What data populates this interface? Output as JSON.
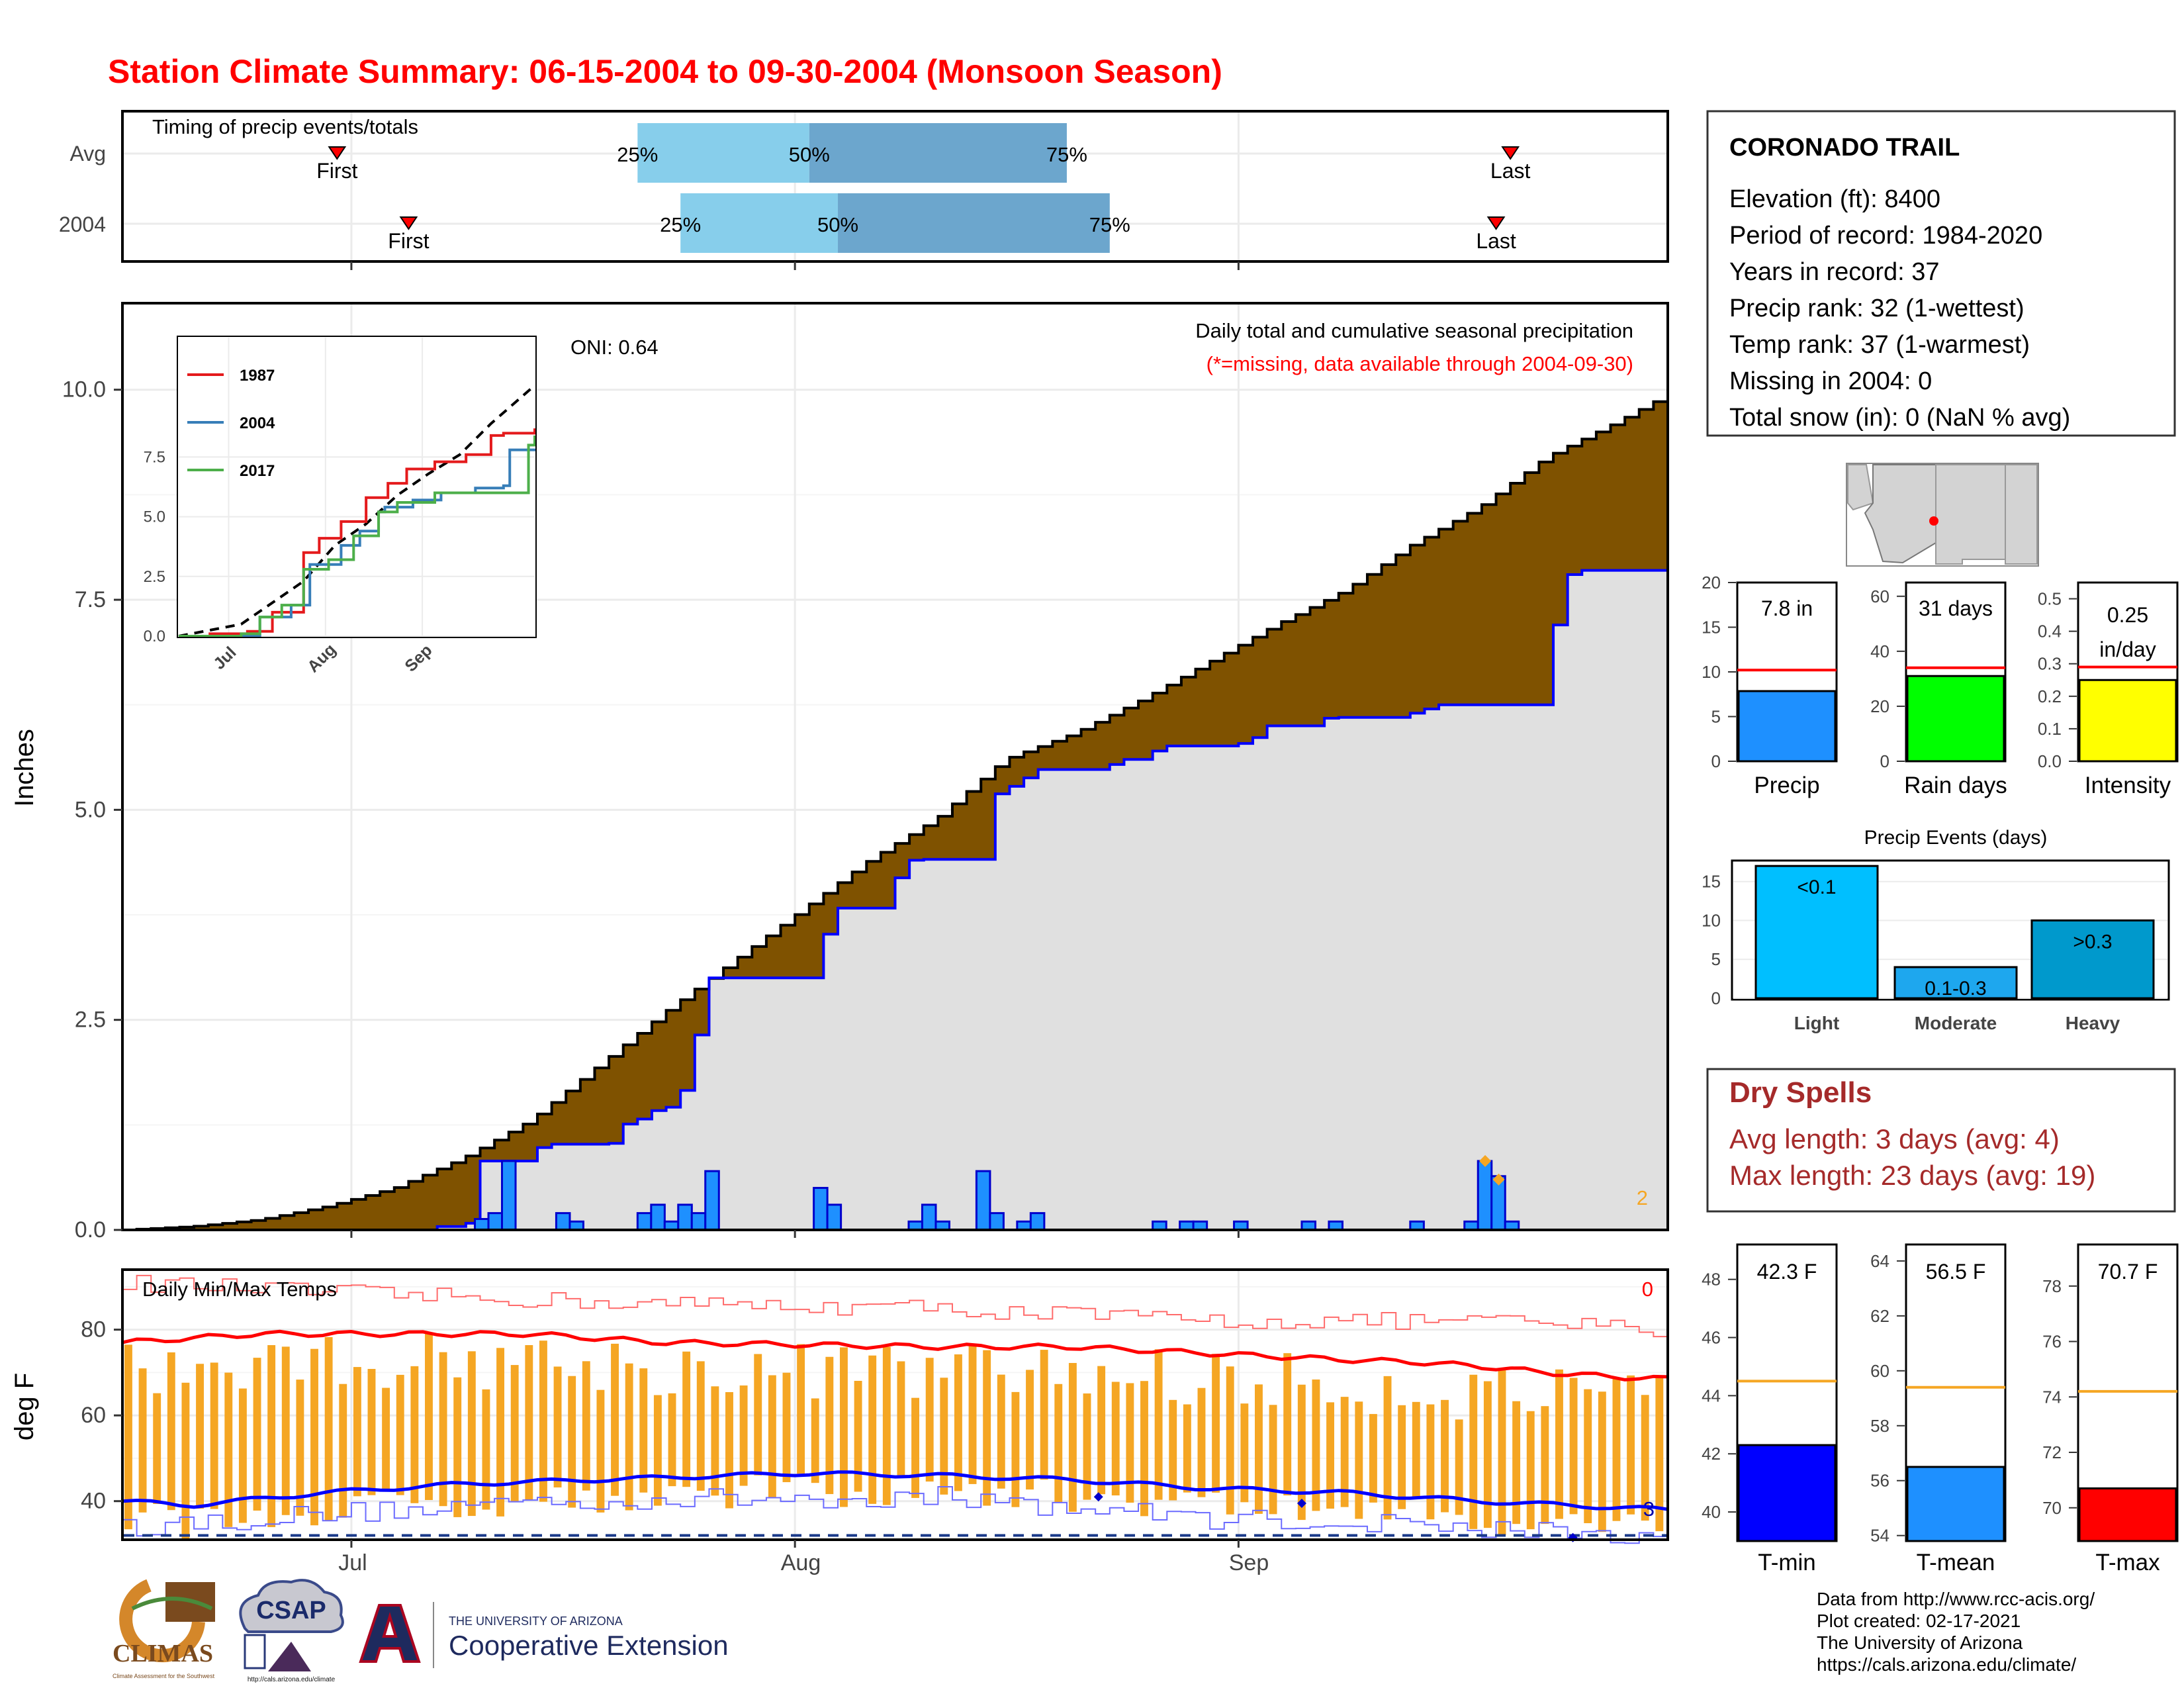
{
  "title": "Station Climate Summary: 06-15-2004 to 09-30-2004 (Monsoon Season)",
  "colors": {
    "title": "#ff0000",
    "brown": "#7f5200",
    "gray_fill": "#e0e0e0",
    "blue_line": "#0000ff",
    "bar_blue": "#1e90ff",
    "orange": "#f5a623",
    "dry_spells": "#a52a2a",
    "tmin": "#0000ff",
    "tmean": "#1e90ff",
    "tmax": "#ff0000",
    "light": "#00bfff",
    "moderate": "#1ea7ee",
    "heavy": "#0099cc",
    "rain_days": "#00ff00",
    "intensity": "#ffff00"
  },
  "timing": {
    "label": "Timing of precip events/totals",
    "rows": [
      {
        "label": "Avg",
        "first": "First",
        "last": "Last",
        "q25": "25%",
        "q50": "50%",
        "q75": "75%",
        "first_date": "2004-06-30",
        "q25_date": "2004-07-21",
        "q50_date": "2004-08-02",
        "q75_date": "2004-08-20",
        "last_date": "2004-09-20"
      },
      {
        "label": "2004",
        "first": "First",
        "last": "Last",
        "q25": "25%",
        "q50": "50%",
        "q75": "75%",
        "first_date": "2004-07-05",
        "q25_date": "2004-07-24",
        "q50_date": "2004-08-04",
        "q75_date": "2004-08-23",
        "last_date": "2004-09-19"
      }
    ]
  },
  "station": {
    "name": "CORONADO TRAIL",
    "lines": [
      "Elevation (ft): 8400",
      "Period of record: 1984-2020",
      "Years in record: 37",
      "Precip rank: 32 (1-wettest)",
      "Temp rank: 37 (1-warmest)",
      "Missing in 2004: 0",
      "Total snow (in): 0 (NaN % avg)"
    ]
  },
  "main_panel": {
    "ylabel": "Inches",
    "yticks": [
      "0.0",
      "2.5",
      "5.0",
      "7.5",
      "10.0"
    ],
    "xticks": [
      "Jul",
      "Aug",
      "Sep"
    ],
    "oni": "ONI: 0.64",
    "legend_title": "Daily total and cumulative seasonal precipitation",
    "missing_note": "(*=missing, data available through 2004-09-30)",
    "corner_count": "2"
  },
  "inset": {
    "yticks": [
      "0.0",
      "2.5",
      "5.0",
      "7.5"
    ],
    "xticks": [
      "Jul",
      "Aug",
      "Sep"
    ],
    "legend": [
      {
        "name": "1987",
        "color": "#e41a1c"
      },
      {
        "name": "2004",
        "color": "#377eb8"
      },
      {
        "name": "2017",
        "color": "#4daf4a"
      }
    ]
  },
  "summary_bars": [
    {
      "label": "Precip",
      "value_text": "7.8 in",
      "yticks": [
        "0",
        "5",
        "10",
        "15",
        "20"
      ]
    },
    {
      "label": "Rain days",
      "value_text": "31 days",
      "yticks": [
        "0",
        "20",
        "40",
        "60"
      ]
    },
    {
      "label": "Intensity",
      "value_text1": "0.25",
      "value_text2": "in/day",
      "yticks": [
        "0.0",
        "0.1",
        "0.2",
        "0.3",
        "0.4",
        "0.5"
      ]
    }
  ],
  "events": {
    "title": "Precip Events (days)",
    "yticks": [
      "0",
      "5",
      "10",
      "15"
    ],
    "bars": [
      {
        "label": "Light",
        "inner": "<0.1"
      },
      {
        "label": "Moderate",
        "inner": "0.1-0.3"
      },
      {
        "label": "Heavy",
        "inner": ">0.3"
      }
    ]
  },
  "dry_spells": {
    "title": "Dry Spells",
    "avg": "Avg length: 3 days (avg: 4)",
    "max": "Max length: 23 days (avg: 19)"
  },
  "temp_panel": {
    "title": "Daily Min/Max Temps",
    "ylabel": "deg F",
    "yticks": [
      "40",
      "60",
      "80"
    ],
    "xticks": [
      "Jul",
      "Aug",
      "Sep"
    ],
    "count_top": "0",
    "count_bottom": "3"
  },
  "temp_bars": [
    {
      "label": "T-min",
      "value_text": "42.3 F",
      "yticks": [
        "40",
        "42",
        "44",
        "46",
        "48"
      ]
    },
    {
      "label": "T-mean",
      "value_text": "56.5 F",
      "yticks": [
        "54",
        "56",
        "58",
        "60",
        "62",
        "64"
      ]
    },
    {
      "label": "T-max",
      "value_text": "70.7 F",
      "yticks": [
        "70",
        "72",
        "74",
        "76",
        "78"
      ]
    }
  ],
  "footer": {
    "lines": [
      "Data from http://www.rcc-acis.org/",
      "Plot created: 02-17-2021",
      "The University of Arizona",
      "https://cals.arizona.edu/climate/"
    ],
    "logos": {
      "climas": "CLIMAS",
      "climas_sub": "Climate Assessment for the Southwest",
      "csap": "CSAP",
      "csap_url": "http://cals.arizona.edu/climate",
      "ua_small": "THE UNIVERSITY OF ARIZONA",
      "ua_big": "Cooperative Extension"
    }
  },
  "chart_data": [
    {
      "type": "area",
      "name": "cumulative_precip",
      "date_range": [
        "2004-06-15",
        "2004-09-30"
      ],
      "ylabel": "Inches",
      "ylim": [
        0,
        11
      ],
      "avg_cumulative_knots": [
        [
          0,
          0
        ],
        [
          5,
          0.04
        ],
        [
          10,
          0.12
        ],
        [
          15,
          0.28
        ],
        [
          20,
          0.5
        ],
        [
          25,
          0.85
        ],
        [
          30,
          1.3
        ],
        [
          35,
          1.95
        ],
        [
          40,
          2.6
        ],
        [
          45,
          3.2
        ],
        [
          50,
          3.8
        ],
        [
          55,
          4.4
        ],
        [
          60,
          4.9
        ],
        [
          65,
          5.6
        ],
        [
          70,
          5.9
        ],
        [
          75,
          6.3
        ],
        [
          80,
          6.75
        ],
        [
          85,
          7.2
        ],
        [
          90,
          7.6
        ],
        [
          95,
          8.15
        ],
        [
          100,
          8.6
        ],
        [
          105,
          9.2
        ],
        [
          110,
          9.6
        ],
        [
          114,
          9.95
        ]
      ],
      "cumulative_2004": [
        [
          0,
          0
        ],
        [
          22,
          0
        ],
        [
          23,
          0.04
        ],
        [
          25,
          0.08
        ],
        [
          26,
          0.82
        ],
        [
          28,
          0.82
        ],
        [
          29,
          0.82
        ],
        [
          30,
          0.98
        ],
        [
          31,
          1.02
        ],
        [
          35,
          1.03
        ],
        [
          36,
          1.26
        ],
        [
          37,
          1.26
        ],
        [
          38,
          1.32
        ],
        [
          39,
          1.42
        ],
        [
          40,
          1.46
        ],
        [
          41,
          1.66
        ],
        [
          42,
          2.32
        ],
        [
          43,
          3.0
        ],
        [
          50,
          3.0
        ],
        [
          51,
          3.52
        ],
        [
          52,
          3.83
        ],
        [
          53,
          3.83
        ],
        [
          55,
          3.83
        ],
        [
          56,
          4.08
        ],
        [
          57,
          4.19
        ],
        [
          58,
          4.4
        ],
        [
          59,
          4.41
        ],
        [
          63,
          4.41
        ],
        [
          64,
          5.19
        ],
        [
          65,
          5.28
        ],
        [
          66,
          5.38
        ],
        [
          67,
          5.48
        ],
        [
          71,
          5.48
        ],
        [
          72,
          5.54
        ],
        [
          73,
          5.6
        ],
        [
          74,
          5.6
        ],
        [
          75,
          5.65
        ],
        [
          76,
          5.7
        ],
        [
          77,
          5.76
        ],
        [
          82,
          5.79
        ],
        [
          83,
          5.86
        ],
        [
          84,
          6.0
        ],
        [
          87,
          6.0
        ],
        [
          88,
          6.09
        ],
        [
          89,
          6.1
        ],
        [
          94,
          6.1
        ],
        [
          95,
          6.15
        ],
        [
          96,
          6.2
        ],
        [
          97,
          6.25
        ],
        [
          98,
          6.25
        ],
        [
          104,
          6.25
        ],
        [
          105,
          7.2
        ],
        [
          106,
          7.8
        ],
        [
          107,
          7.85
        ],
        [
          114,
          7.85
        ]
      ],
      "daily_precip": [
        [
          26,
          0.13
        ],
        [
          27,
          0.2
        ],
        [
          28,
          0.82
        ],
        [
          32,
          0.2
        ],
        [
          33,
          0.1
        ],
        [
          38,
          0.2
        ],
        [
          39,
          0.3
        ],
        [
          40,
          0.1
        ],
        [
          41,
          0.3
        ],
        [
          42,
          0.2
        ],
        [
          43,
          0.7
        ],
        [
          51,
          0.5
        ],
        [
          52,
          0.3
        ],
        [
          58,
          0.1
        ],
        [
          59,
          0.3
        ],
        [
          60,
          0.1
        ],
        [
          63,
          0.7
        ],
        [
          64,
          0.2
        ],
        [
          66,
          0.1
        ],
        [
          67,
          0.2
        ],
        [
          76,
          0.1
        ],
        [
          78,
          0.1
        ],
        [
          79,
          0.1
        ],
        [
          82,
          0.1
        ],
        [
          87,
          0.1
        ],
        [
          89,
          0.1
        ],
        [
          95,
          0.1
        ],
        [
          99,
          0.1
        ],
        [
          100,
          0.82
        ],
        [
          101,
          0.64
        ],
        [
          102,
          0.1
        ]
      ],
      "daily_missing_markers": [
        [
          100,
          0.82
        ],
        [
          101,
          0.6
        ]
      ]
    },
    {
      "type": "line",
      "name": "inset_cumulative_comparison",
      "ylim": [
        0,
        10.5
      ],
      "avg": [
        [
          0,
          0
        ],
        [
          20,
          0.5
        ],
        [
          40,
          2.3
        ],
        [
          50,
          3.8
        ],
        [
          60,
          4.7
        ],
        [
          70,
          5.9
        ],
        [
          80,
          6.8
        ],
        [
          90,
          7.6
        ],
        [
          100,
          8.9
        ],
        [
          114,
          10.5
        ]
      ],
      "series": [
        {
          "name": "1987",
          "values": [
            [
              0,
              0
            ],
            [
              10,
              0.1
            ],
            [
              22,
              0.2
            ],
            [
              30,
              1.0
            ],
            [
              40,
              3.5
            ],
            [
              45,
              4.1
            ],
            [
              52,
              4.8
            ],
            [
              60,
              5.8
            ],
            [
              67,
              6.4
            ],
            [
              73,
              7.0
            ],
            [
              82,
              7.3
            ],
            [
              92,
              7.6
            ],
            [
              100,
              8.4
            ],
            [
              104,
              8.5
            ],
            [
              114,
              8.7
            ]
          ]
        },
        {
          "name": "2004",
          "values": [
            [
              0,
              0
            ],
            [
              22,
              0
            ],
            [
              26,
              0.8
            ],
            [
              36,
              1.3
            ],
            [
              42,
              3.0
            ],
            [
              50,
              3.0
            ],
            [
              52,
              3.8
            ],
            [
              58,
              4.4
            ],
            [
              64,
              5.2
            ],
            [
              66,
              5.4
            ],
            [
              75,
              5.7
            ],
            [
              84,
              6.0
            ],
            [
              95,
              6.2
            ],
            [
              104,
              6.3
            ],
            [
              106,
              7.8
            ],
            [
              114,
              7.85
            ]
          ]
        },
        {
          "name": "2017",
          "values": [
            [
              0,
              0
            ],
            [
              20,
              0.1
            ],
            [
              26,
              0.8
            ],
            [
              33,
              1.3
            ],
            [
              40,
              2.8
            ],
            [
              48,
              3.2
            ],
            [
              56,
              4.2
            ],
            [
              64,
              5.2
            ],
            [
              70,
              5.6
            ],
            [
              82,
              6.0
            ],
            [
              110,
              6.0
            ],
            [
              112,
              8.0
            ],
            [
              114,
              8.4
            ]
          ]
        }
      ]
    },
    {
      "type": "bar",
      "name": "season_summary",
      "categories": [
        "Precip",
        "Rain days",
        "Intensity"
      ],
      "values": [
        7.85,
        31,
        0.25
      ],
      "averages": [
        10.2,
        34,
        0.29
      ],
      "ylims": [
        [
          0,
          20
        ],
        [
          0,
          65
        ],
        [
          0,
          0.55
        ]
      ]
    },
    {
      "type": "bar",
      "name": "precip_events",
      "categories": [
        "Light",
        "Moderate",
        "Heavy"
      ],
      "values": [
        17,
        4,
        10
      ],
      "ylim": [
        0,
        17
      ]
    },
    {
      "type": "line",
      "name": "daily_temps",
      "ylim": [
        31,
        94
      ],
      "tmax_avg_knots": [
        [
          0,
          77
        ],
        [
          10,
          79
        ],
        [
          20,
          79
        ],
        [
          30,
          79
        ],
        [
          40,
          77
        ],
        [
          50,
          76.5
        ],
        [
          60,
          76
        ],
        [
          70,
          76
        ],
        [
          80,
          74.5
        ],
        [
          90,
          73
        ],
        [
          95,
          72.5
        ],
        [
          100,
          71.5
        ],
        [
          105,
          70
        ],
        [
          110,
          69
        ],
        [
          114,
          68.5
        ]
      ],
      "tmin_avg_knots": [
        [
          0,
          40
        ],
        [
          5,
          39
        ],
        [
          15,
          42
        ],
        [
          25,
          44
        ],
        [
          35,
          45
        ],
        [
          50,
          46.5
        ],
        [
          60,
          46
        ],
        [
          70,
          45
        ],
        [
          80,
          43
        ],
        [
          90,
          42
        ],
        [
          100,
          40
        ],
        [
          114,
          38
        ]
      ],
      "record_high_knots": [
        [
          0,
          91
        ],
        [
          20,
          88
        ],
        [
          40,
          86
        ],
        [
          60,
          85
        ],
        [
          80,
          82
        ],
        [
          100,
          82
        ],
        [
          114,
          80
        ]
      ],
      "record_low_knots": [
        [
          0,
          34
        ],
        [
          30,
          40
        ],
        [
          60,
          41
        ],
        [
          80,
          36
        ],
        [
          100,
          34
        ],
        [
          114,
          31
        ]
      ],
      "freezing": 32
    },
    {
      "type": "bar",
      "name": "temperature_summary",
      "categories": [
        "T-min",
        "T-mean",
        "T-max"
      ],
      "values": [
        42.3,
        56.5,
        70.7
      ],
      "averages": [
        44.5,
        59.4,
        74.2
      ],
      "ylims": [
        [
          39,
          49.2
        ],
        [
          53.8,
          64.6
        ],
        [
          68.8,
          79.5
        ]
      ]
    }
  ]
}
